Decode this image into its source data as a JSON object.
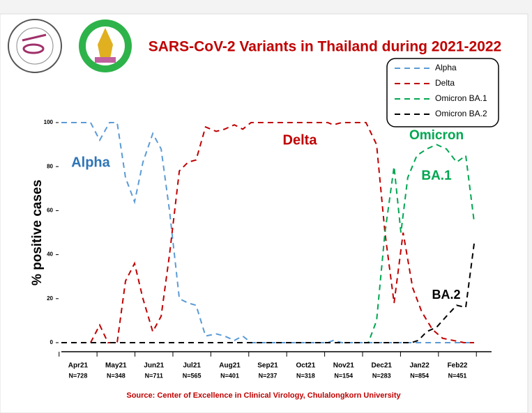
{
  "chart_data": {
    "type": "line",
    "title": "SARS-CoV-2 Variants in Thailand during 2021-2022",
    "y_label": "% positive cases",
    "source": "Source: Center of Excellence in Clinical Virology, Chulalongkorn University",
    "categories": [
      "Apr21",
      "May21",
      "Jun21",
      "Jul21",
      "Aug21",
      "Sep21",
      "Oct21",
      "Nov21",
      "Dec21",
      "Jan22",
      "Feb22"
    ],
    "sample_sizes": [
      "N=728",
      "N=348",
      "N=711",
      "N=565",
      "N=401",
      "N=237",
      "N=318",
      "N=154",
      "N=283",
      "N=854",
      "N=451"
    ],
    "xlim": [
      -0.44,
      10.9
    ],
    "ylim": [
      0,
      100
    ],
    "yticks": [
      0,
      20,
      40,
      60,
      80,
      100
    ],
    "legend": "top-right",
    "series": [
      {
        "name": "Alpha",
        "color": "#5b9bd5",
        "x": [
          -0.44,
          0.33,
          0.57,
          0.83,
          1.03,
          1.25,
          1.49,
          1.71,
          1.97,
          2.19,
          2.41,
          2.67,
          2.9,
          3.11,
          3.36,
          3.64,
          3.86,
          4.12,
          4.34,
          4.56,
          6.58,
          6.73,
          6.95,
          10.44
        ],
        "values": [
          100,
          100,
          92,
          100,
          100,
          75,
          64,
          82,
          95,
          88,
          60,
          20,
          18,
          17,
          3,
          4,
          3,
          1,
          3,
          0,
          0,
          1,
          0,
          0
        ]
      },
      {
        "name": "Delta",
        "color": "#c00000",
        "x": [
          -0.44,
          0.33,
          0.57,
          0.79,
          1.03,
          1.25,
          1.49,
          1.71,
          1.97,
          2.19,
          2.41,
          2.67,
          2.9,
          3.11,
          3.36,
          3.64,
          3.86,
          4.12,
          4.34,
          4.56,
          6.58,
          6.73,
          6.95,
          7.59,
          7.87,
          8.09,
          8.33,
          8.57,
          8.82,
          9.06,
          9.34,
          9.61,
          9.89,
          10.17,
          10.44
        ],
        "values": [
          0,
          0,
          8,
          0,
          0,
          28,
          36,
          20,
          5,
          12,
          40,
          78,
          82,
          83,
          98,
          96,
          97,
          99,
          97,
          100,
          100,
          99,
          100,
          100,
          90,
          50,
          18,
          50,
          25,
          14,
          6,
          2,
          1,
          0,
          0
        ]
      },
      {
        "name": "Omicron BA.1",
        "color": "#00a651",
        "x": [
          -0.44,
          7.65,
          7.87,
          8.09,
          8.33,
          8.51,
          8.69,
          8.93,
          9.19,
          9.45,
          9.71,
          9.98,
          10.22,
          10.44
        ],
        "values": [
          0,
          0,
          10,
          50,
          80,
          50,
          75,
          85,
          88,
          90,
          88,
          82,
          85,
          55
        ]
      },
      {
        "name": "Omicron BA.2",
        "color": "#000000",
        "x": [
          -0.44,
          8.79,
          8.97,
          9.19,
          9.45,
          9.71,
          9.98,
          10.22,
          10.44
        ],
        "values": [
          0,
          0,
          1,
          5,
          7,
          12,
          17,
          16,
          45
        ]
      }
    ],
    "annotations": [
      {
        "text": "Alpha",
        "color": "#2e75b6"
      },
      {
        "text": "Delta",
        "color": "#c00000"
      },
      {
        "text": "Omicron",
        "color": "#00a651"
      },
      {
        "text": "BA.1",
        "color": "#00a651"
      },
      {
        "text": "BA.2",
        "color": "#000000"
      }
    ]
  }
}
